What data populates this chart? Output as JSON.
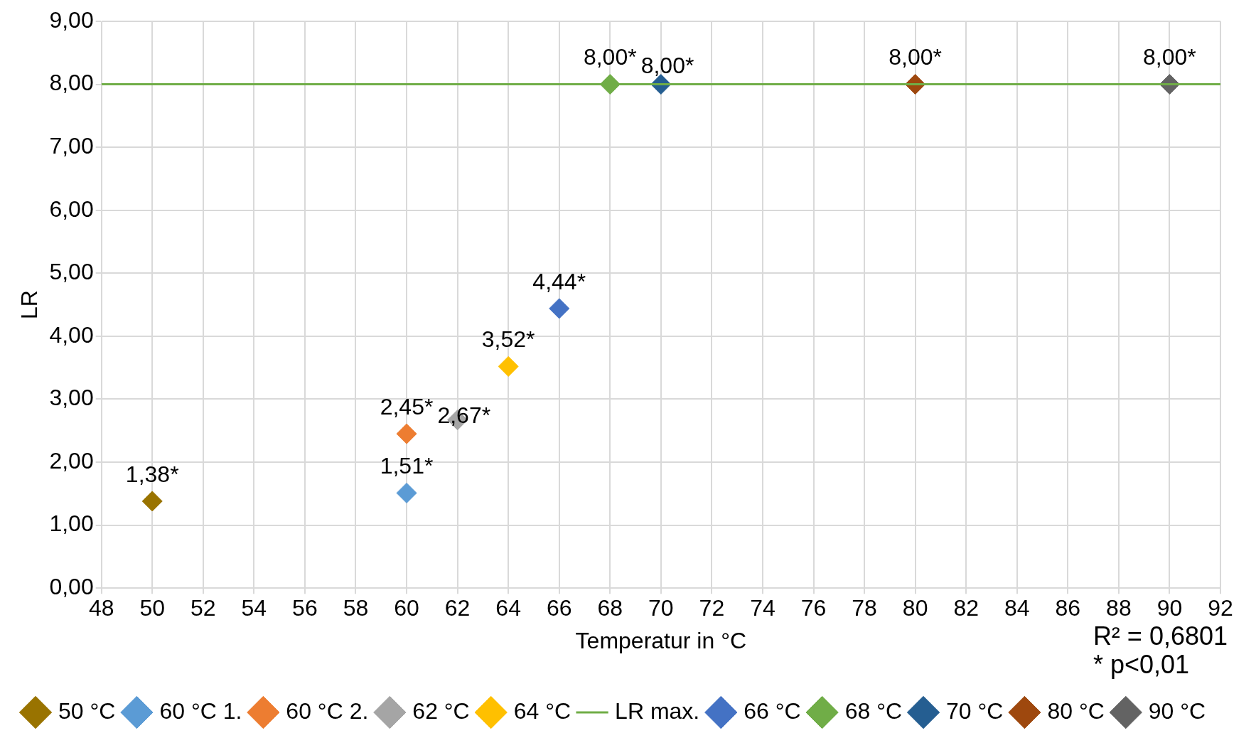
{
  "chart_data": {
    "type": "scatter",
    "xlabel": "Temperatur in °C",
    "ylabel": "LR",
    "marker": "diamond",
    "grid": true,
    "legend": "bottom",
    "xlim": [
      48,
      92
    ],
    "xticks": [
      48,
      50,
      52,
      54,
      56,
      58,
      60,
      62,
      64,
      66,
      68,
      70,
      72,
      74,
      76,
      78,
      80,
      82,
      84,
      86,
      88,
      90,
      92
    ],
    "ylim": [
      0,
      9
    ],
    "yticks": [
      {
        "value": 0,
        "label": "0,00"
      },
      {
        "value": 1,
        "label": "1,00"
      },
      {
        "value": 2,
        "label": "2,00"
      },
      {
        "value": 3,
        "label": "3,00"
      },
      {
        "value": 4,
        "label": "4,00"
      },
      {
        "value": 5,
        "label": "5,00"
      },
      {
        "value": 6,
        "label": "6,00"
      },
      {
        "value": 7,
        "label": "7,00"
      },
      {
        "value": 8,
        "label": "8,00"
      },
      {
        "value": 9,
        "label": "9,00"
      }
    ],
    "series": [
      {
        "name": "50 °C",
        "color": "#997300",
        "x": [
          50
        ],
        "values": [
          1.38
        ],
        "value_labels": [
          "1,38*"
        ]
      },
      {
        "name": "60 °C 1.",
        "color": "#5b9bd5",
        "x": [
          60
        ],
        "values": [
          1.51
        ],
        "value_labels": [
          "1,51*"
        ]
      },
      {
        "name": "60 °C 2.",
        "color": "#ed7d31",
        "x": [
          60
        ],
        "values": [
          2.45
        ],
        "value_labels": [
          "2,45*"
        ]
      },
      {
        "name": "62 °C",
        "color": "#a5a5a5",
        "x": [
          62
        ],
        "values": [
          2.67
        ],
        "value_labels": [
          "2,67*"
        ]
      },
      {
        "name": "64 °C",
        "color": "#ffc000",
        "x": [
          64
        ],
        "values": [
          3.52
        ],
        "value_labels": [
          "3,52*"
        ]
      },
      {
        "name": "LR max.",
        "type": "line",
        "marker": "none",
        "color": "#70ad47",
        "x": [
          48,
          92
        ],
        "values": [
          8,
          8
        ]
      },
      {
        "name": "66 °C",
        "color": "#4472c4",
        "x": [
          66
        ],
        "values": [
          4.44
        ],
        "value_labels": [
          "4,44*"
        ]
      },
      {
        "name": "68 °C",
        "color": "#70ad47",
        "x": [
          68
        ],
        "values": [
          8
        ],
        "value_labels": [
          "8,00*"
        ]
      },
      {
        "name": "70 °C",
        "color": "#255e91",
        "x": [
          70
        ],
        "values": [
          8
        ],
        "value_labels": [
          "8,00*"
        ]
      },
      {
        "name": "80 °C",
        "color": "#9e480e",
        "x": [
          80
        ],
        "values": [
          8
        ],
        "value_labels": [
          "8,00*"
        ]
      },
      {
        "name": "90 °C",
        "color": "#636363",
        "x": [
          90
        ],
        "values": [
          8
        ],
        "value_labels": [
          "8,00*"
        ]
      }
    ],
    "annotations": [
      "R² = 0,6801",
      "* p<0,01"
    ]
  }
}
